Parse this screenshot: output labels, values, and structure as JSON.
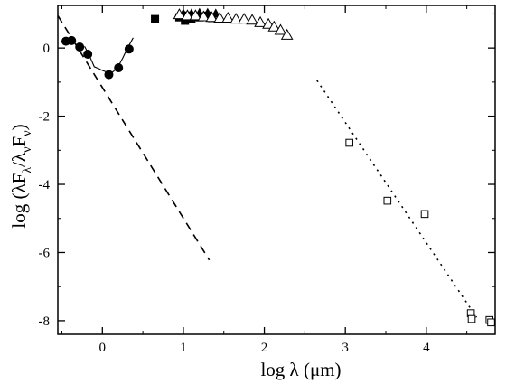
{
  "chart_data": {
    "type": "scatter",
    "title": "",
    "xlabel": "log λ (μm)",
    "ylabel_parts": {
      "main": "log (λF",
      "sub1": "λ",
      "mid": "/λ",
      "sub2": "ν",
      "mid2": "F",
      "sub3": "ν",
      "end": ")"
    },
    "xlim": [
      -0.55,
      4.85
    ],
    "ylim": [
      -8.4,
      1.25
    ],
    "xticks": [
      0,
      1,
      2,
      3,
      4
    ],
    "yticks": [
      0,
      -2,
      -4,
      -6,
      -8
    ],
    "xtick_labels": [
      "0",
      "1",
      "2",
      "3",
      "4"
    ],
    "ytick_labels": [
      "0",
      "-2",
      "-4",
      "-6",
      "-8"
    ],
    "grid": false,
    "series": [
      {
        "kind": "filled-circles",
        "points": [
          [
            -0.45,
            0.2
          ],
          [
            -0.38,
            0.22
          ],
          [
            -0.28,
            0.03
          ],
          [
            -0.18,
            -0.18
          ],
          [
            0.08,
            -0.78
          ],
          [
            0.2,
            -0.58
          ],
          [
            0.33,
            -0.03
          ]
        ]
      },
      {
        "kind": "spectrum-line",
        "points": [
          [
            -0.22,
            0.05
          ],
          [
            -0.15,
            -0.28
          ],
          [
            -0.1,
            -0.55
          ],
          [
            -0.05,
            -0.6
          ],
          [
            0.0,
            -0.66
          ],
          [
            0.05,
            -0.7
          ],
          [
            0.1,
            -0.75
          ],
          [
            0.14,
            -0.68
          ],
          [
            0.2,
            -0.52
          ],
          [
            0.25,
            -0.3
          ],
          [
            0.3,
            -0.05
          ],
          [
            0.38,
            0.3
          ]
        ]
      },
      {
        "kind": "filled-squares",
        "points": [
          [
            0.65,
            0.85
          ],
          [
            0.95,
            0.9
          ],
          [
            1.02,
            0.8
          ],
          [
            1.05,
            0.95
          ],
          [
            1.1,
            0.85
          ],
          [
            1.2,
            0.9
          ],
          [
            1.3,
            0.95
          ],
          [
            1.35,
            0.88
          ]
        ]
      },
      {
        "kind": "filled-triangles",
        "points": [
          [
            1.0,
            1.0
          ],
          [
            1.1,
            1.0
          ],
          [
            1.2,
            1.02
          ],
          [
            1.3,
            1.02
          ],
          [
            1.4,
            1.0
          ]
        ]
      },
      {
        "kind": "open-triangles",
        "points": [
          [
            0.95,
            0.98
          ],
          [
            1.05,
            0.95
          ],
          [
            1.15,
            0.95
          ],
          [
            1.25,
            0.92
          ],
          [
            1.35,
            0.9
          ],
          [
            1.45,
            0.88
          ],
          [
            1.55,
            0.88
          ],
          [
            1.65,
            0.85
          ],
          [
            1.75,
            0.85
          ],
          [
            1.85,
            0.82
          ],
          [
            1.95,
            0.75
          ],
          [
            2.05,
            0.7
          ],
          [
            2.12,
            0.62
          ],
          [
            2.2,
            0.52
          ],
          [
            2.28,
            0.38
          ]
        ]
      },
      {
        "kind": "open-squares",
        "points": [
          [
            3.05,
            -2.78
          ],
          [
            3.52,
            -4.48
          ],
          [
            3.98,
            -4.87
          ],
          [
            4.55,
            -7.78
          ],
          [
            4.56,
            -7.95
          ],
          [
            4.78,
            -7.98
          ],
          [
            4.8,
            -8.05
          ]
        ]
      }
    ],
    "lines": [
      {
        "kind": "dashed",
        "points": [
          [
            -0.55,
            0.95
          ],
          [
            1.32,
            -6.22
          ]
        ]
      },
      {
        "kind": "dotted",
        "points": [
          [
            2.65,
            -0.95
          ],
          [
            4.62,
            -7.9
          ]
        ]
      }
    ]
  }
}
